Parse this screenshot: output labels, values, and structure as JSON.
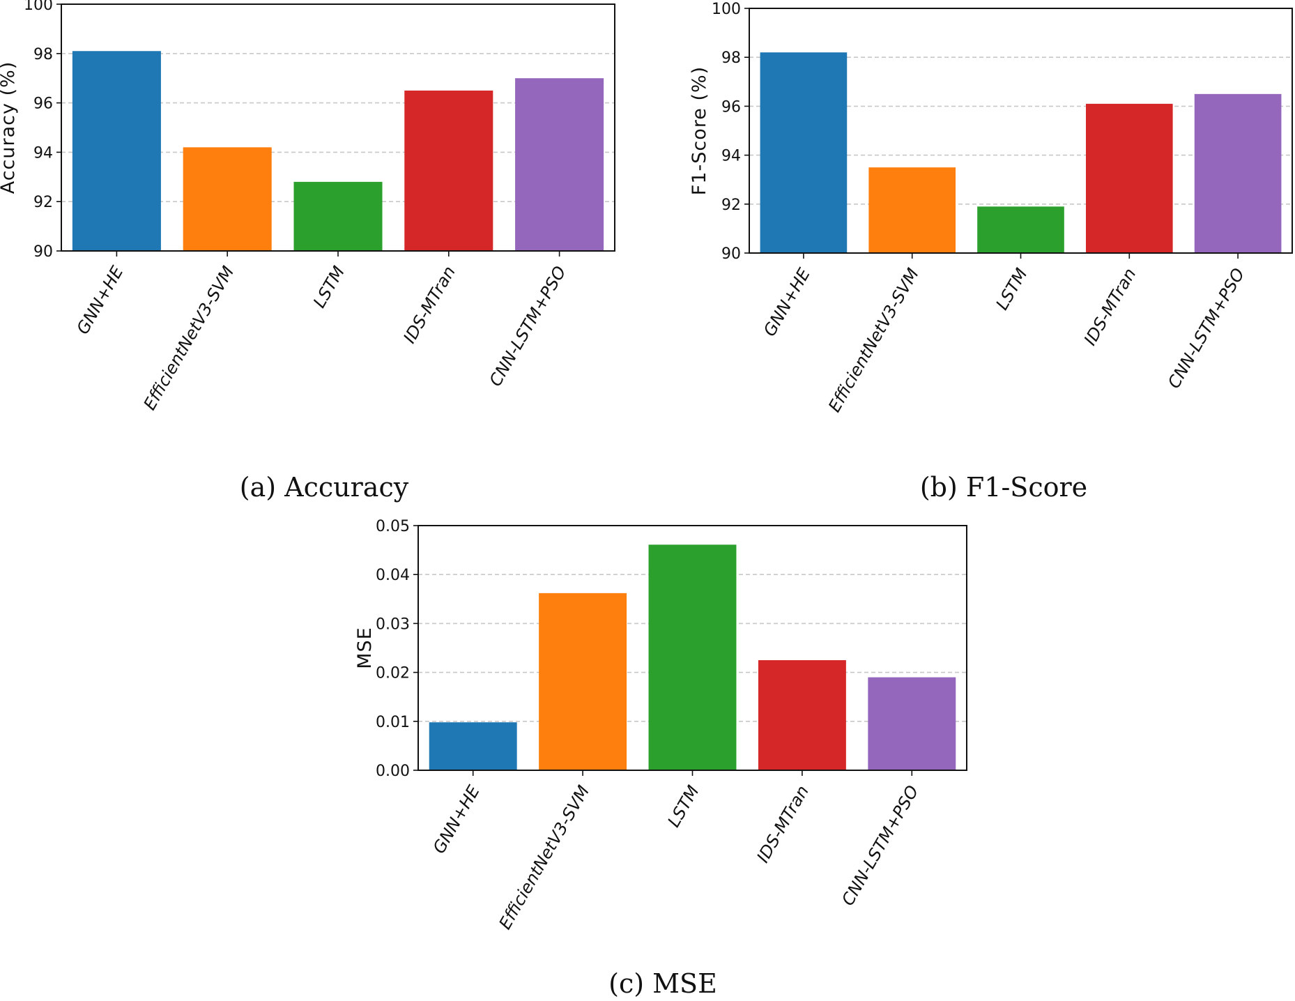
{
  "chart_data": [
    {
      "type": "bar",
      "title": "",
      "caption": "(a) Accuracy",
      "xlabel": "",
      "ylabel": "Accuracy (%)",
      "categories": [
        "GNN+HE",
        "EfficientNetV3-SVM",
        "LSTM",
        "IDS-MTran",
        "CNN-LSTM+PSO"
      ],
      "values": [
        98.1,
        94.2,
        92.8,
        96.5,
        97.0
      ],
      "colors": [
        "#1f77b4",
        "#ff7f0e",
        "#2ca02c",
        "#d62728",
        "#9467bd"
      ],
      "ylim": [
        90,
        100
      ],
      "yticks": [
        "90",
        "92",
        "94",
        "96",
        "98",
        "100"
      ],
      "grid": true
    },
    {
      "type": "bar",
      "title": "",
      "caption": "(b) F1-Score",
      "xlabel": "",
      "ylabel": "F1-Score (%)",
      "categories": [
        "GNN+HE",
        "EfficientNetV3-SVM",
        "LSTM",
        "IDS-MTran",
        "CNN-LSTM+PSO"
      ],
      "values": [
        98.2,
        93.5,
        91.9,
        96.1,
        96.5
      ],
      "colors": [
        "#1f77b4",
        "#ff7f0e",
        "#2ca02c",
        "#d62728",
        "#9467bd"
      ],
      "ylim": [
        90,
        100
      ],
      "yticks": [
        "90",
        "92",
        "94",
        "96",
        "98",
        "100"
      ],
      "grid": true
    },
    {
      "type": "bar",
      "title": "",
      "caption": "(c) MSE",
      "xlabel": "",
      "ylabel": "MSE",
      "categories": [
        "GNN+HE",
        "EfficientNetV3-SVM",
        "LSTM",
        "IDS-MTran",
        "CNN-LSTM+PSO"
      ],
      "values": [
        0.0098,
        0.0362,
        0.0461,
        0.0225,
        0.019
      ],
      "colors": [
        "#1f77b4",
        "#ff7f0e",
        "#2ca02c",
        "#d62728",
        "#9467bd"
      ],
      "ylim": [
        0,
        0.05
      ],
      "yticks": [
        "0.00",
        "0.01",
        "0.02",
        "0.03",
        "0.04",
        "0.05"
      ],
      "grid": true
    }
  ]
}
